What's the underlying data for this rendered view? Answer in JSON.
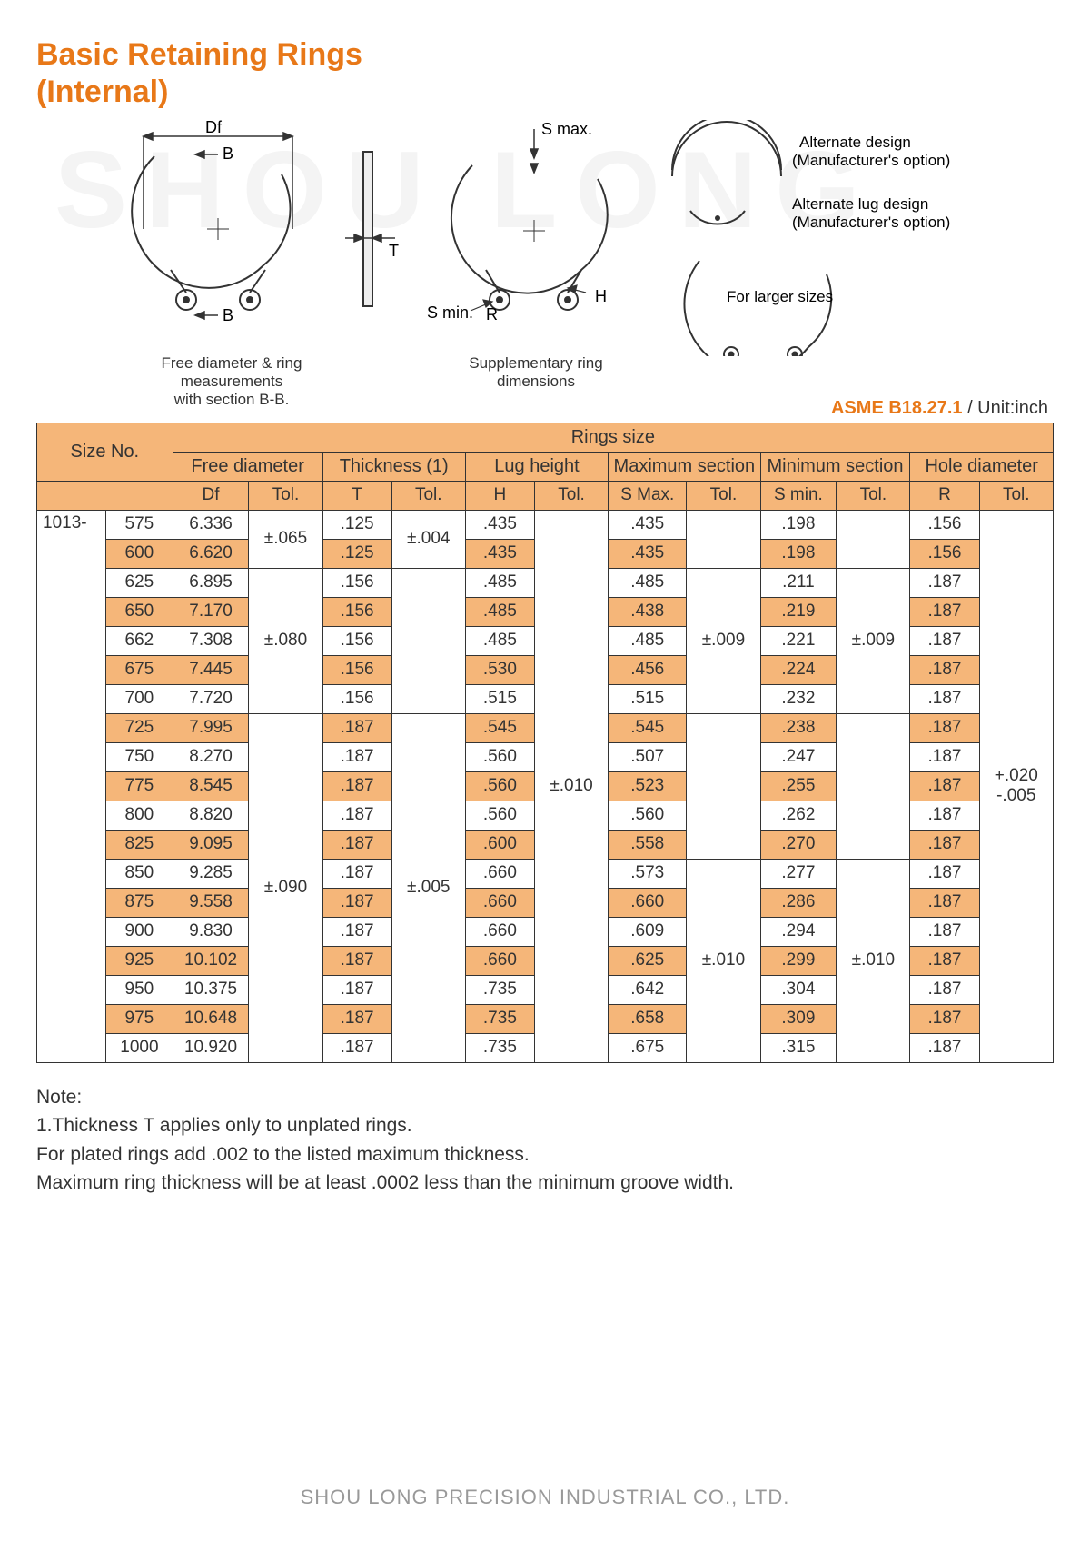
{
  "title_line1": "Basic Retaining Rings",
  "title_line2": "(Internal)",
  "watermark": "SHOU LONG",
  "diagram": {
    "df_label": "Df",
    "b_label": "B",
    "t_label": "T",
    "smax_label": "S max.",
    "smin_label": "S min.",
    "r_label": "R",
    "h_label": "H",
    "alt_design": "Alternate design",
    "alt_design2": "(Manufacturer's option)",
    "alt_lug": "Alternate lug design",
    "alt_lug2": "(Manufacturer's option)",
    "for_larger": "For larger sizes",
    "caption1a": "Free diameter & ring measurements",
    "caption1b": "with section B-B.",
    "caption2a": "Supplementary ring",
    "caption2b": "dimensions"
  },
  "asme_code": "ASME B18.27.1",
  "asme_unit": " / Unit:inch",
  "headers": {
    "size_no": "Size No.",
    "rings_size": "Rings size",
    "free_diameter": "Free diameter",
    "thickness": "Thickness (1)",
    "lug_height": "Lug height",
    "max_section": "Maximum section",
    "min_section": "Minimum section",
    "hole_diameter": "Hole diameter",
    "df": "Df",
    "t": "T",
    "h": "H",
    "smax": "S Max.",
    "smin": "S min.",
    "r": "R",
    "tol": "Tol."
  },
  "size_prefix": "1013-",
  "tol_groups": {
    "df": [
      {
        "value": "±.065",
        "span": 2
      },
      {
        "value": "±.080",
        "span": 5
      },
      {
        "value": "±.090",
        "span": 12
      }
    ],
    "t": [
      {
        "value": "±.004",
        "span": 2
      },
      {
        "value": "",
        "span": 5
      },
      {
        "value": "±.005",
        "span": 12
      }
    ],
    "h": [
      {
        "value": "±.010",
        "span": 19
      }
    ],
    "smax": [
      {
        "value": "",
        "span": 2
      },
      {
        "value": "±.009",
        "span": 5
      },
      {
        "value": "",
        "span": 5
      },
      {
        "value": "±.010",
        "span": 7
      }
    ],
    "smin": [
      {
        "value": "",
        "span": 2
      },
      {
        "value": "±.009",
        "span": 5
      },
      {
        "value": "",
        "span": 5
      },
      {
        "value": "±.010",
        "span": 7
      }
    ],
    "r": [
      {
        "value": "+.020\n-.005",
        "span": 19
      }
    ]
  },
  "rows": [
    {
      "size": "575",
      "df": "6.336",
      "t": ".125",
      "h": ".435",
      "smax": ".435",
      "smin": ".198",
      "r": ".156"
    },
    {
      "size": "600",
      "df": "6.620",
      "t": ".125",
      "h": ".435",
      "smax": ".435",
      "smin": ".198",
      "r": ".156"
    },
    {
      "size": "625",
      "df": "6.895",
      "t": ".156",
      "h": ".485",
      "smax": ".485",
      "smin": ".211",
      "r": ".187"
    },
    {
      "size": "650",
      "df": "7.170",
      "t": ".156",
      "h": ".485",
      "smax": ".438",
      "smin": ".219",
      "r": ".187"
    },
    {
      "size": "662",
      "df": "7.308",
      "t": ".156",
      "h": ".485",
      "smax": ".485",
      "smin": ".221",
      "r": ".187"
    },
    {
      "size": "675",
      "df": "7.445",
      "t": ".156",
      "h": ".530",
      "smax": ".456",
      "smin": ".224",
      "r": ".187"
    },
    {
      "size": "700",
      "df": "7.720",
      "t": ".156",
      "h": ".515",
      "smax": ".515",
      "smin": ".232",
      "r": ".187"
    },
    {
      "size": "725",
      "df": "7.995",
      "t": ".187",
      "h": ".545",
      "smax": ".545",
      "smin": ".238",
      "r": ".187"
    },
    {
      "size": "750",
      "df": "8.270",
      "t": ".187",
      "h": ".560",
      "smax": ".507",
      "smin": ".247",
      "r": ".187"
    },
    {
      "size": "775",
      "df": "8.545",
      "t": ".187",
      "h": ".560",
      "smax": ".523",
      "smin": ".255",
      "r": ".187"
    },
    {
      "size": "800",
      "df": "8.820",
      "t": ".187",
      "h": ".560",
      "smax": ".560",
      "smin": ".262",
      "r": ".187"
    },
    {
      "size": "825",
      "df": "9.095",
      "t": ".187",
      "h": ".600",
      "smax": ".558",
      "smin": ".270",
      "r": ".187"
    },
    {
      "size": "850",
      "df": "9.285",
      "t": ".187",
      "h": ".660",
      "smax": ".573",
      "smin": ".277",
      "r": ".187"
    },
    {
      "size": "875",
      "df": "9.558",
      "t": ".187",
      "h": ".660",
      "smax": ".660",
      "smin": ".286",
      "r": ".187"
    },
    {
      "size": "900",
      "df": "9.830",
      "t": ".187",
      "h": ".660",
      "smax": ".609",
      "smin": ".294",
      "r": ".187"
    },
    {
      "size": "925",
      "df": "10.102",
      "t": ".187",
      "h": ".660",
      "smax": ".625",
      "smin": ".299",
      "r": ".187"
    },
    {
      "size": "950",
      "df": "10.375",
      "t": ".187",
      "h": ".735",
      "smax": ".642",
      "smin": ".304",
      "r": ".187"
    },
    {
      "size": "975",
      "df": "10.648",
      "t": ".187",
      "h": ".735",
      "smax": ".658",
      "smin": ".309",
      "r": ".187"
    },
    {
      "size": "1000",
      "df": "10.920",
      "t": ".187",
      "h": ".735",
      "smax": ".675",
      "smin": ".315",
      "r": ".187"
    }
  ],
  "notes": {
    "heading": "Note:",
    "line1": "1.Thickness T applies only to unplated rings.",
    "line2": "For plated rings add .002 to the listed maximum thickness.",
    "line3": "Maximum ring thickness will be at least .0002 less than the minimum groove width."
  },
  "footer": "SHOU LONG PRECISION INDUSTRIAL CO., LTD.",
  "colors": {
    "accent": "#e87818",
    "header_bg": "#f5b679",
    "border": "#333333",
    "text": "#333333",
    "footer": "#999999"
  }
}
